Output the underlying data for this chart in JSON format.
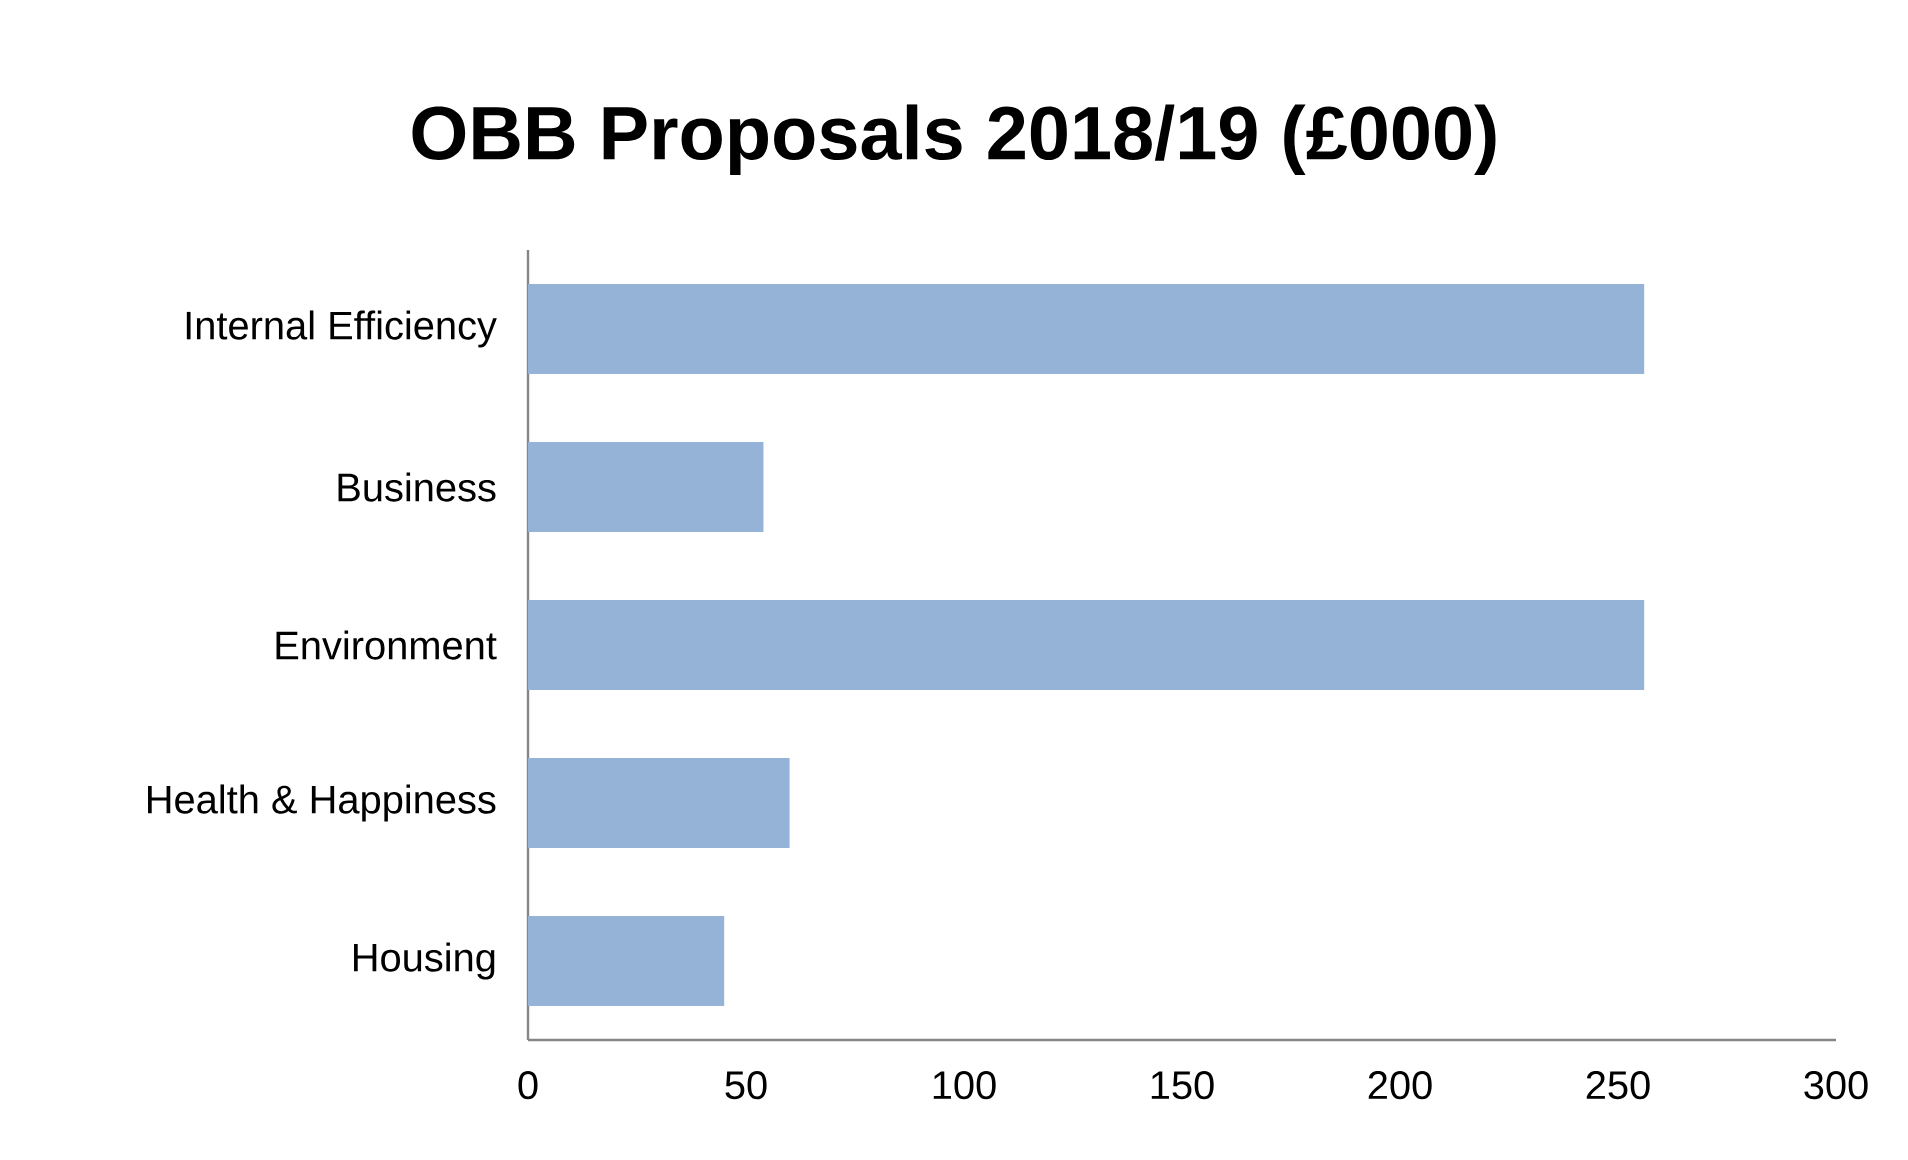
{
  "chart_data": {
    "type": "bar",
    "orientation": "horizontal",
    "title": "OBB Proposals 2018/19 (£000)",
    "categories": [
      "Internal Efficiency",
      "Business",
      "Environment",
      "Health & Happiness",
      "Housing"
    ],
    "values": [
      256,
      54,
      256,
      60,
      45
    ],
    "color": "#95b3d7",
    "xlim": [
      0,
      300
    ],
    "xticks": [
      0,
      50,
      100,
      150,
      200,
      250,
      300
    ],
    "grid": false
  }
}
